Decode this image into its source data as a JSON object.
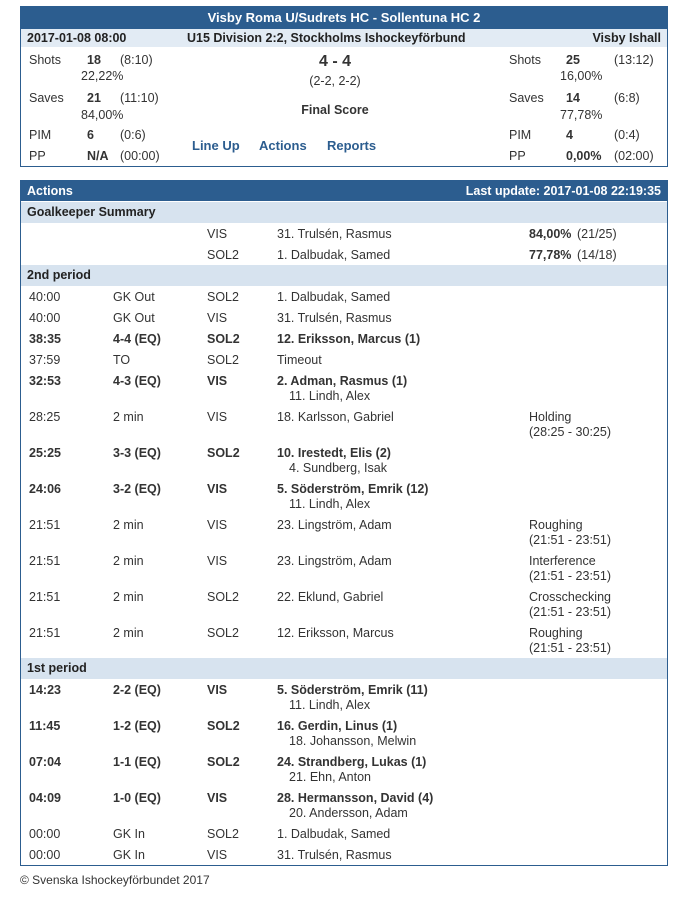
{
  "game": {
    "title": "Visby Roma U/Sudrets HC - Sollentuna HC 2",
    "datetime": "2017-01-08 08:00",
    "league": "U15 Division 2:2, Stockholms Ishockeyförbund",
    "venue": "Visby Ishall",
    "score": "4 - 4",
    "periods": "(2-2, 2-2)",
    "status": "Final Score",
    "home": {
      "shots_label": "Shots",
      "shots": "18",
      "shots_split": "(8:10)",
      "shots_pct": "22,22%",
      "saves_label": "Saves",
      "saves": "21",
      "saves_split": "(11:10)",
      "saves_pct": "84,00%",
      "pim_label": "PIM",
      "pim": "6",
      "pim_split": "(0:6)",
      "pp_label": "PP",
      "pp": "N/A",
      "pp_split": "(00:00)"
    },
    "away": {
      "shots_label": "Shots",
      "shots": "25",
      "shots_split": "(13:12)",
      "shots_pct": "16,00%",
      "saves_label": "Saves",
      "saves": "14",
      "saves_split": "(6:8)",
      "saves_pct": "77,78%",
      "pim_label": "PIM",
      "pim": "4",
      "pim_split": "(0:4)",
      "pp_label": "PP",
      "pp": "0,00%",
      "pp_split": "(02:00)"
    },
    "links": {
      "lineup": "Line Up",
      "actions": "Actions",
      "reports": "Reports"
    }
  },
  "actions": {
    "title": "Actions",
    "last_update": "Last update: 2017-01-08 22:19:35",
    "gk_title": "Goalkeeper Summary",
    "gk": [
      {
        "team": "VIS",
        "player": "31. Trulsén, Rasmus",
        "pct": "84,00%",
        "split": "(21/25)"
      },
      {
        "team": "SOL2",
        "player": "1. Dalbudak, Samed",
        "pct": "77,78%",
        "split": "(14/18)"
      }
    ],
    "p2_title": "2nd period",
    "p2": [
      {
        "time": "40:00",
        "event": "GK Out",
        "team": "SOL2",
        "player": "1. Dalbudak, Samed",
        "assist": "",
        "info1": "",
        "info2": "",
        "bold": false
      },
      {
        "time": "40:00",
        "event": "GK Out",
        "team": "VIS",
        "player": "31. Trulsén, Rasmus",
        "assist": "",
        "info1": "",
        "info2": "",
        "bold": false
      },
      {
        "time": "38:35",
        "event": "4-4 (EQ)",
        "team": "SOL2",
        "player": "12. Eriksson, Marcus (1)",
        "assist": "",
        "info1": "",
        "info2": "",
        "bold": true
      },
      {
        "time": "37:59",
        "event": "TO",
        "team": "SOL2",
        "player": "Timeout",
        "assist": "",
        "info1": "",
        "info2": "",
        "bold": false
      },
      {
        "time": "32:53",
        "event": "4-3 (EQ)",
        "team": "VIS",
        "player": "2. Adman, Rasmus (1)",
        "assist": "11. Lindh, Alex",
        "info1": "",
        "info2": "",
        "bold": true
      },
      {
        "time": "28:25",
        "event": "2 min",
        "team": "VIS",
        "player": "18. Karlsson, Gabriel",
        "assist": "",
        "info1": "Holding",
        "info2": "(28:25 - 30:25)",
        "bold": false
      },
      {
        "time": "25:25",
        "event": "3-3 (EQ)",
        "team": "SOL2",
        "player": "10. Irestedt, Elis (2)",
        "assist": "4. Sundberg, Isak",
        "info1": "",
        "info2": "",
        "bold": true
      },
      {
        "time": "24:06",
        "event": "3-2 (EQ)",
        "team": "VIS",
        "player": "5. Söderström, Emrik (12)",
        "assist": "11. Lindh, Alex",
        "info1": "",
        "info2": "",
        "bold": true
      },
      {
        "time": "21:51",
        "event": "2 min",
        "team": "VIS",
        "player": "23. Lingström, Adam",
        "assist": "",
        "info1": "Roughing",
        "info2": "(21:51 - 23:51)",
        "bold": false
      },
      {
        "time": "21:51",
        "event": "2 min",
        "team": "VIS",
        "player": "23. Lingström, Adam",
        "assist": "",
        "info1": "Interference",
        "info2": "(21:51 - 23:51)",
        "bold": false
      },
      {
        "time": "21:51",
        "event": "2 min",
        "team": "SOL2",
        "player": "22. Eklund, Gabriel",
        "assist": "",
        "info1": "Crosschecking",
        "info2": "(21:51 - 23:51)",
        "bold": false
      },
      {
        "time": "21:51",
        "event": "2 min",
        "team": "SOL2",
        "player": "12. Eriksson, Marcus",
        "assist": "",
        "info1": "Roughing",
        "info2": "(21:51 - 23:51)",
        "bold": false
      }
    ],
    "p1_title": "1st period",
    "p1": [
      {
        "time": "14:23",
        "event": "2-2 (EQ)",
        "team": "VIS",
        "player": "5. Söderström, Emrik (11)",
        "assist": "11. Lindh, Alex",
        "info1": "",
        "info2": "",
        "bold": true
      },
      {
        "time": "11:45",
        "event": "1-2 (EQ)",
        "team": "SOL2",
        "player": "16. Gerdin, Linus (1)",
        "assist": "18. Johansson, Melwin",
        "info1": "",
        "info2": "",
        "bold": true
      },
      {
        "time": "07:04",
        "event": "1-1 (EQ)",
        "team": "SOL2",
        "player": "24. Strandberg, Lukas (1)",
        "assist": "21. Ehn, Anton",
        "info1": "",
        "info2": "",
        "bold": true
      },
      {
        "time": "04:09",
        "event": "1-0 (EQ)",
        "team": "VIS",
        "player": "28. Hermansson, David (4)",
        "assist": "20. Andersson, Adam",
        "info1": "",
        "info2": "",
        "bold": true
      },
      {
        "time": "00:00",
        "event": "GK In",
        "team": "SOL2",
        "player": "1. Dalbudak, Samed",
        "assist": "",
        "info1": "",
        "info2": "",
        "bold": false
      },
      {
        "time": "00:00",
        "event": "GK In",
        "team": "VIS",
        "player": "31. Trulsén, Rasmus",
        "assist": "",
        "info1": "",
        "info2": "",
        "bold": false
      }
    ]
  },
  "footer": "© Svenska Ishockeyförbundet 2017"
}
